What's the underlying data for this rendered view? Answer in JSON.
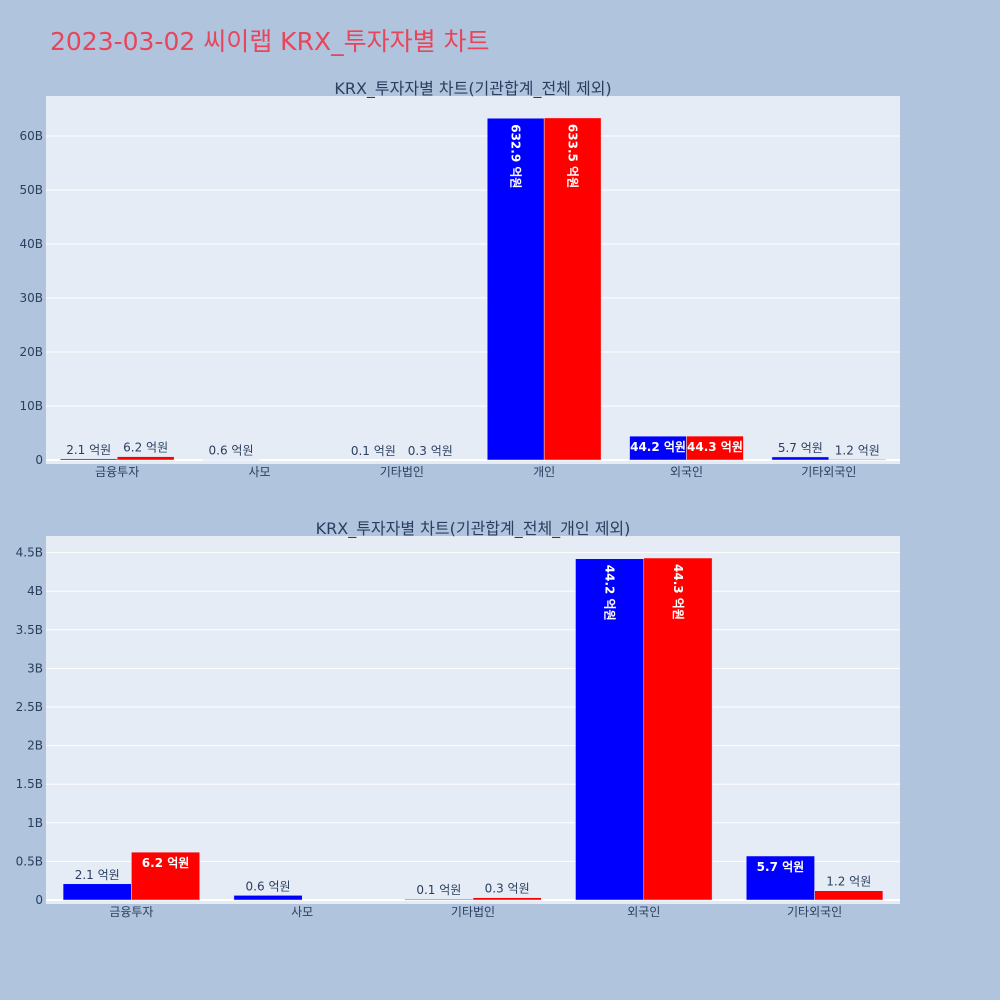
{
  "page": {
    "title": "2023-03-02 씨이랩 KRX_투자자별 차트"
  },
  "colors": {
    "background": "#b0c4de",
    "plot_bg": "#e5ecf6",
    "title": "#e8455a",
    "series_a": "#0000ff",
    "series_b": "#ff0000"
  },
  "chart_data": [
    {
      "type": "bar",
      "title": "KRX_투자자별 차트(기관합계_전체 제외)",
      "categories": [
        "금융투자",
        "사모",
        "기타법인",
        "개인",
        "외국인",
        "기타외국인"
      ],
      "series": [
        {
          "values": [
            210000000,
            60000000,
            10000000,
            63290000000,
            4420000000,
            570000000
          ],
          "labels": [
            "2.1 억원",
            "0.6 억원",
            "0.1 억원",
            "632.9 억원",
            "44.2 억원",
            "5.7 억원"
          ]
        },
        {
          "values": [
            620000000,
            0,
            30000000,
            63350000000,
            4430000000,
            120000000
          ],
          "labels": [
            "6.2 억원",
            "",
            "0.3 억원",
            "633.5 억원",
            "44.3 억원",
            "1.2 억원"
          ]
        }
      ],
      "yticks": [
        "0",
        "10B",
        "20B",
        "30B",
        "40B",
        "50B",
        "60B"
      ],
      "ylim": [
        0,
        67000000000
      ],
      "grid": true,
      "legend": "none"
    },
    {
      "type": "bar",
      "title": "KRX_투자자별 차트(기관합계_전체_개인 제외)",
      "categories": [
        "금융투자",
        "사모",
        "기타법인",
        "외국인",
        "기타외국인"
      ],
      "series": [
        {
          "values": [
            210000000,
            60000000,
            10000000,
            4420000000,
            570000000
          ],
          "labels": [
            "2.1 억원",
            "0.6 억원",
            "0.1 억원",
            "44.2 억원",
            "5.7 억원"
          ]
        },
        {
          "values": [
            620000000,
            0,
            30000000,
            4430000000,
            120000000
          ],
          "labels": [
            "6.2 억원",
            "",
            "0.3 억원",
            "44.3 억원",
            "1.2 억원"
          ]
        }
      ],
      "yticks": [
        "0",
        "0.5B",
        "1B",
        "1.5B",
        "2B",
        "2.5B",
        "3B",
        "3.5B",
        "4B",
        "4.5B"
      ],
      "ylim": [
        0,
        4700000000
      ],
      "grid": true,
      "legend": "none"
    }
  ]
}
